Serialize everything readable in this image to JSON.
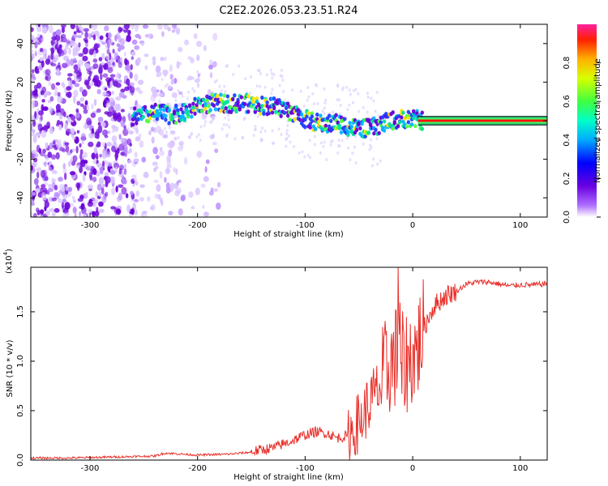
{
  "figure": {
    "title": "C2E2.2026.053.23.51.R24"
  },
  "chart_data": [
    {
      "type": "heatmap",
      "name": "spectrogram",
      "title": "C2E2.2026.053.23.51.R24",
      "xlabel": "Height of straight line (km)",
      "ylabel": "Frequency (Hz)",
      "xlim": [
        -355,
        125
      ],
      "ylim": [
        -50,
        50
      ],
      "xticks": [
        -300,
        -200,
        -100,
        0,
        100
      ],
      "yticks": [
        -40,
        -20,
        0,
        20,
        40
      ],
      "xtick_labels": [
        "-300",
        "-200",
        "-100",
        "0",
        "100"
      ],
      "ytick_labels": [
        "-40",
        "-20",
        "0",
        "20",
        "40"
      ],
      "ridge_frequency_track": {
        "height_km": [
          -255,
          -240,
          -225,
          -210,
          -200,
          -185,
          -170,
          -155,
          -140,
          -125,
          -110,
          -100,
          -90,
          -80,
          -70,
          -60,
          -50,
          -40,
          -30,
          -20,
          -10,
          0,
          10,
          60,
          125
        ],
        "frequency_hz": [
          2,
          4,
          3,
          4,
          8,
          9,
          9,
          9,
          8,
          7,
          4,
          1,
          -1,
          -2,
          -1,
          -3,
          -4,
          -4,
          -2,
          0,
          1,
          1,
          0,
          0,
          0
        ]
      },
      "colorbar": {
        "label": "Normalized spectral amplitude",
        "range": [
          0,
          1
        ],
        "ticks": [
          0.0,
          0.2,
          0.4,
          0.6,
          0.8
        ],
        "tick_labels": [
          "0.0",
          "0.2",
          "0.4",
          "0.6",
          "0.8"
        ]
      }
    },
    {
      "type": "line",
      "name": "snr",
      "xlabel": "Height of straight line (km)",
      "ylabel": "SNR (10 * v/v)",
      "y_scale_label": "(x10",
      "y_scale_exponent": "4",
      "xlim": [
        -355,
        125
      ],
      "ylim": [
        0,
        1.95
      ],
      "xticks": [
        -300,
        -200,
        -100,
        0,
        100
      ],
      "yticks": [
        0.0,
        0.5,
        1.0,
        1.5
      ],
      "xtick_labels": [
        "-300",
        "-200",
        "-100",
        "0",
        "100"
      ],
      "ytick_labels": [
        "0.0",
        "0.5",
        "1.0",
        "1.5"
      ],
      "series": [
        {
          "name": "SNR",
          "color": "#e8302a",
          "x": [
            -355,
            -320,
            -280,
            -240,
            -230,
            -200,
            -170,
            -150,
            -130,
            -115,
            -100,
            -90,
            -80,
            -70,
            -60,
            -50,
            -45,
            -40,
            -35,
            -30,
            -25,
            -20,
            -15,
            -12,
            -10,
            -5,
            0,
            5,
            10,
            15,
            20,
            25,
            30,
            40,
            50,
            60,
            70,
            80,
            90,
            100,
            110,
            125
          ],
          "y": [
            0.02,
            0.02,
            0.03,
            0.04,
            0.07,
            0.05,
            0.06,
            0.08,
            0.12,
            0.18,
            0.25,
            0.28,
            0.27,
            0.22,
            0.24,
            0.35,
            0.45,
            0.55,
            0.65,
            0.72,
            0.85,
            0.95,
            1.0,
            1.1,
            0.9,
            0.95,
            1.02,
            1.1,
            1.3,
            1.45,
            1.55,
            1.6,
            1.65,
            1.7,
            1.78,
            1.8,
            1.8,
            1.78,
            1.76,
            1.77,
            1.77,
            1.78
          ]
        }
      ]
    }
  ],
  "colors": {
    "snr_line": "#e8302a",
    "axes": "#000000",
    "background": "#ffffff"
  }
}
